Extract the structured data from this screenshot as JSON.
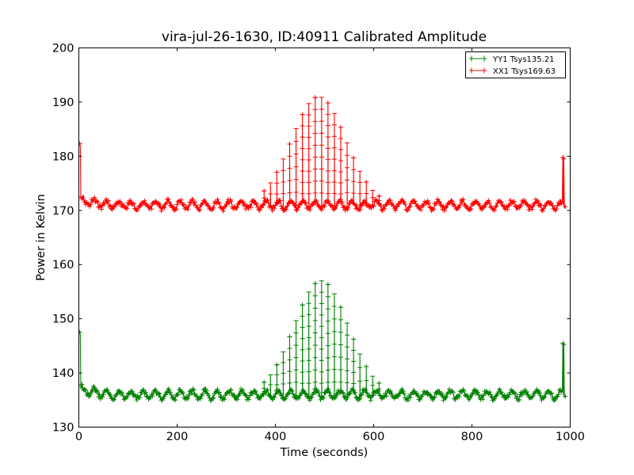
{
  "chart_data": {
    "type": "line",
    "title": "vira-jul-26-1630, ID:40911 Calibrated Amplitude",
    "xlabel": "Time (seconds)",
    "ylabel": "Power in Kelvin",
    "xlim": [
      0,
      1000
    ],
    "ylim": [
      130,
      200
    ],
    "xticks": [
      "0",
      "200",
      "400",
      "600",
      "800",
      "1000"
    ],
    "yticks": [
      "130",
      "140",
      "150",
      "160",
      "170",
      "180",
      "190",
      "200"
    ],
    "grid": false,
    "legend_position": "top-right",
    "series": [
      {
        "name": "YY1 Tsys135.21",
        "color": "#008000",
        "marker": "+",
        "baseline": 136,
        "start_spike": 147.5,
        "end_spike": 145.5,
        "peak_center_s": 493,
        "peak_max": 157,
        "peak_width_s": 55,
        "peak_start_s": 370,
        "peak_end_s": 620,
        "x_start": 2,
        "x_end": 990
      },
      {
        "name": "XX1 Tsys169.63",
        "color": "#ff0000",
        "marker": "+",
        "baseline": 171,
        "start_spike": 182.3,
        "end_spike": 179.8,
        "peak_center_s": 488,
        "peak_max": 191,
        "peak_width_s": 55,
        "peak_start_s": 365,
        "peak_end_s": 615,
        "x_start": 2,
        "x_end": 990
      }
    ]
  }
}
